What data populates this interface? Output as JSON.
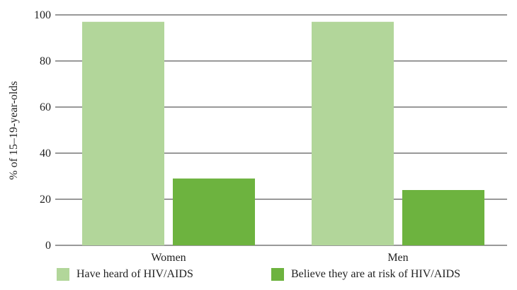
{
  "chart_data": {
    "type": "bar",
    "categories": [
      "Women",
      "Men"
    ],
    "series": [
      {
        "name": "Have heard of HIV/AIDS",
        "values": [
          97,
          97
        ],
        "color": "#b2d69a"
      },
      {
        "name": "Believe they are at risk of HIV/AIDS",
        "values": [
          29,
          24
        ],
        "color": "#6db33f"
      }
    ],
    "ylabel": "% of 15–19-year-olds",
    "xlabel": "",
    "ylim": [
      0,
      100
    ],
    "yticks": [
      0,
      20,
      40,
      60,
      80,
      100
    ],
    "grid": true,
    "legend_position": "bottom"
  }
}
